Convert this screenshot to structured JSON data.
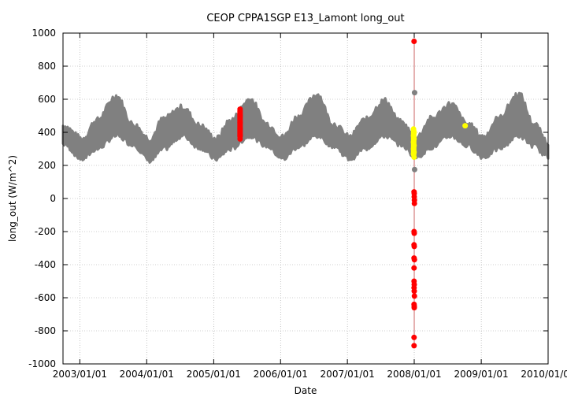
{
  "chart_data": {
    "type": "scatter",
    "title": "CEOP CPPA1SGP E13_Lamont  long_out",
    "xlabel": "Date",
    "ylabel": "long_out (W/m^2)",
    "xlim": [
      "2002/10/01",
      "2010/01/01"
    ],
    "ylim": [
      -1000,
      1000
    ],
    "x_ticks": [
      "2003/01/01",
      "2004/01/01",
      "2005/01/01",
      "2006/01/01",
      "2007/01/01",
      "2008/01/01",
      "2009/01/01",
      "2010/01/01"
    ],
    "y_ticks": [
      1000,
      800,
      600,
      400,
      200,
      0,
      -200,
      -400,
      -600,
      -800,
      -1000
    ],
    "grid": true,
    "legend": "none",
    "series": [
      {
        "color": "#808080",
        "description": "seasonal band of normal values",
        "band": [
          {
            "x": "2002/10/01",
            "low": 330,
            "high": 440
          },
          {
            "x": "2003/01/15",
            "low": 240,
            "high": 360
          },
          {
            "x": "2003/04/01",
            "low": 300,
            "high": 470
          },
          {
            "x": "2003/07/20",
            "low": 380,
            "high": 620
          },
          {
            "x": "2003/10/15",
            "low": 330,
            "high": 450
          },
          {
            "x": "2004/01/20",
            "low": 230,
            "high": 360
          },
          {
            "x": "2004/04/01",
            "low": 300,
            "high": 480
          },
          {
            "x": "2004/07/15",
            "low": 380,
            "high": 550
          },
          {
            "x": "2004/10/15",
            "low": 310,
            "high": 440
          },
          {
            "x": "2005/01/15",
            "low": 240,
            "high": 360
          },
          {
            "x": "2005/04/01",
            "low": 300,
            "high": 470
          },
          {
            "x": "2005/07/20",
            "low": 380,
            "high": 600
          },
          {
            "x": "2005/10/15",
            "low": 320,
            "high": 450
          },
          {
            "x": "2006/01/15",
            "low": 240,
            "high": 370
          },
          {
            "x": "2006/04/01",
            "low": 310,
            "high": 490
          },
          {
            "x": "2006/07/20",
            "low": 380,
            "high": 630
          },
          {
            "x": "2006/10/15",
            "low": 320,
            "high": 450
          },
          {
            "x": "2007/01/15",
            "low": 240,
            "high": 370
          },
          {
            "x": "2007/04/01",
            "low": 300,
            "high": 470
          },
          {
            "x": "2007/07/25",
            "low": 380,
            "high": 590
          },
          {
            "x": "2007/10/15",
            "low": 330,
            "high": 460
          },
          {
            "x": "2008/01/15",
            "low": 250,
            "high": 370
          },
          {
            "x": "2008/04/01",
            "low": 310,
            "high": 480
          },
          {
            "x": "2008/07/20",
            "low": 380,
            "high": 570
          },
          {
            "x": "2008/10/15",
            "low": 320,
            "high": 450
          },
          {
            "x": "2009/01/15",
            "low": 250,
            "high": 370
          },
          {
            "x": "2009/04/01",
            "low": 300,
            "high": 480
          },
          {
            "x": "2009/07/25",
            "low": 380,
            "high": 630
          },
          {
            "x": "2009/10/15",
            "low": 320,
            "high": 450
          },
          {
            "x": "2010/01/01",
            "low": 250,
            "high": 340
          }
        ],
        "points": [
          {
            "x": "2008/01/03",
            "y": 640
          },
          {
            "x": "2008/01/03",
            "y": 175
          }
        ]
      },
      {
        "color": "#ff0000",
        "description": "flagged values",
        "points": [
          {
            "x": "2005/05/25",
            "y": 540
          },
          {
            "x": "2005/05/25",
            "y": 500
          },
          {
            "x": "2005/05/25",
            "y": 460
          },
          {
            "x": "2005/05/25",
            "y": 420
          },
          {
            "x": "2005/05/25",
            "y": 380
          },
          {
            "x": "2005/05/25",
            "y": 360
          },
          {
            "x": "2007/12/31",
            "y": 950
          },
          {
            "x": "2007/12/31",
            "y": 40
          },
          {
            "x": "2008/01/01",
            "y": 30
          },
          {
            "x": "2008/01/01",
            "y": 10
          },
          {
            "x": "2008/01/02",
            "y": -10
          },
          {
            "x": "2008/01/02",
            "y": -30
          },
          {
            "x": "2007/12/31",
            "y": -200
          },
          {
            "x": "2008/01/01",
            "y": -210
          },
          {
            "x": "2007/12/31",
            "y": -280
          },
          {
            "x": "2008/01/01",
            "y": -290
          },
          {
            "x": "2007/12/31",
            "y": -360
          },
          {
            "x": "2008/01/02",
            "y": -370
          },
          {
            "x": "2007/12/31",
            "y": -420
          },
          {
            "x": "2007/12/31",
            "y": -500
          },
          {
            "x": "2008/01/01",
            "y": -520
          },
          {
            "x": "2007/12/31",
            "y": -540
          },
          {
            "x": "2008/01/01",
            "y": -560
          },
          {
            "x": "2008/01/02",
            "y": -590
          },
          {
            "x": "2007/12/31",
            "y": -640
          },
          {
            "x": "2008/01/01",
            "y": -650
          },
          {
            "x": "2008/01/01",
            "y": -660
          },
          {
            "x": "2007/12/31",
            "y": -840
          },
          {
            "x": "2007/12/31",
            "y": -890
          }
        ]
      },
      {
        "color": "#ffff00",
        "description": "highlighted values",
        "points": [
          {
            "x": "2007/12/28",
            "y": 420
          },
          {
            "x": "2007/12/28",
            "y": 380
          },
          {
            "x": "2007/12/28",
            "y": 340
          },
          {
            "x": "2007/12/28",
            "y": 300
          },
          {
            "x": "2007/12/28",
            "y": 270
          },
          {
            "x": "2007/12/31",
            "y": 400
          },
          {
            "x": "2007/12/31",
            "y": 360
          },
          {
            "x": "2007/12/31",
            "y": 320
          },
          {
            "x": "2007/12/31",
            "y": 280
          },
          {
            "x": "2007/12/31",
            "y": 250
          },
          {
            "x": "2008/10/05",
            "y": 440
          }
        ]
      }
    ],
    "colors": {
      "axis": "#000000",
      "grid": "#a0a0a0",
      "connector": "#cc6666"
    }
  }
}
